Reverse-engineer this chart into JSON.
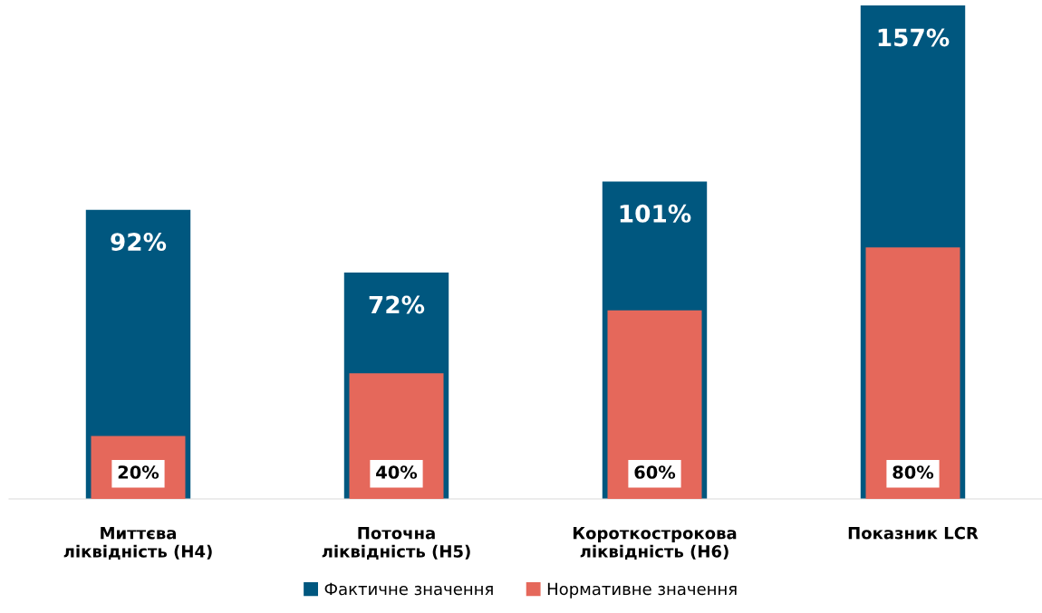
{
  "chart_data": {
    "type": "bar",
    "categories": [
      "Миттєва\nліквідність (Н4)",
      "Поточна\nліквідність (Н5)",
      "Короткострокова\nліквідність (Н6)",
      "Показник LCR"
    ],
    "series": [
      {
        "name": "Фактичне значення",
        "color": "#00577f",
        "values": [
          92,
          72,
          101,
          157
        ],
        "value_labels": [
          "92%",
          "72%",
          "101%",
          "157%"
        ]
      },
      {
        "name": "Нормативне значення",
        "color": "#e5685b",
        "values": [
          20,
          40,
          60,
          80
        ],
        "value_labels": [
          "20%",
          "40%",
          "60%",
          "80%"
        ]
      }
    ],
    "tick_labels": "x",
    "grid": false,
    "legend": "bottom"
  }
}
